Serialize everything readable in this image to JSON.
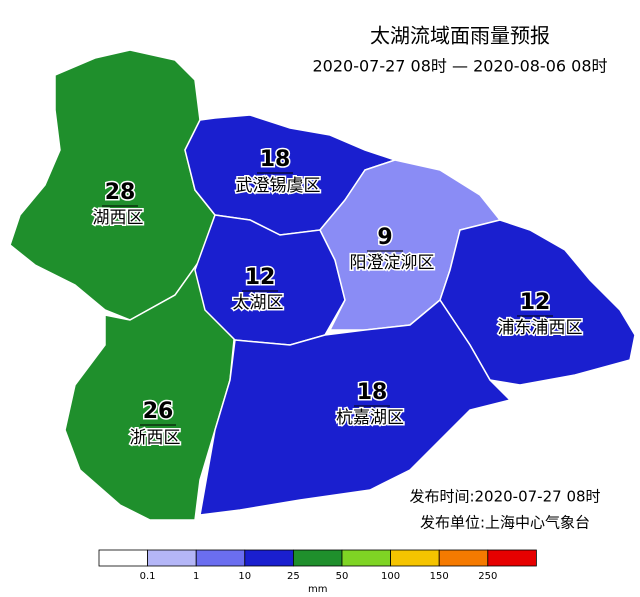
{
  "title": "太湖流域面雨量预报",
  "period": "2020-07-27 08时 — 2020-08-06 08时",
  "regions": [
    {
      "name": "湖西区",
      "value": 28,
      "color": "#1f8f2c"
    },
    {
      "name": "浙西区",
      "value": 26,
      "color": "#1f8f2c"
    },
    {
      "name": "武澄锡虞区",
      "value": 18,
      "color": "#1a1fcf"
    },
    {
      "name": "太湖区",
      "value": 12,
      "color": "#1a1fcf"
    },
    {
      "name": "阳澄淀泖区",
      "value": 9,
      "color": "#8a8cf5"
    },
    {
      "name": "浦东浦西区",
      "value": 12,
      "color": "#1a1fcf"
    },
    {
      "name": "杭嘉湖区",
      "value": 18,
      "color": "#1a1fcf"
    }
  ],
  "publish_time": "发布时间:2020-07-27 08时",
  "publisher": "发布单位:上海中心气象台",
  "legend": {
    "colors": [
      "#ffffff",
      "#b4b6f7",
      "#6b6ef0",
      "#1a1fcf",
      "#1f8f2c",
      "#7fd424",
      "#f5c400",
      "#f57a00",
      "#e60000"
    ],
    "labels": [
      0.1,
      1,
      10,
      25,
      50,
      100,
      150,
      250
    ],
    "unit": "mm"
  }
}
